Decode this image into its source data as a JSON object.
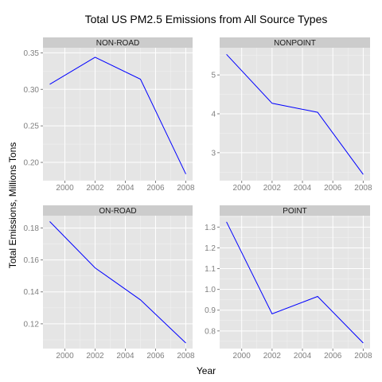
{
  "chart_data": {
    "type": "line",
    "title": "Total US PM2.5 Emissions from All Source Types",
    "xlabel": "Year",
    "ylabel": "Total Emissions, Millions Tons",
    "x_ticks": [
      2000,
      2002,
      2004,
      2006,
      2008
    ],
    "grid": true,
    "line_color": "#0000ff",
    "panel_background": "#e5e5e5",
    "strip_background": "#cccccc",
    "panels": [
      {
        "name": "NON-ROAD",
        "x": [
          1999,
          2002,
          2005,
          2008
        ],
        "values": [
          0.307,
          0.344,
          0.314,
          0.184
        ],
        "ylim": [
          0.175,
          0.357
        ],
        "y_ticks": [
          0.2,
          0.25,
          0.3,
          0.35
        ],
        "y_tick_labels": [
          "0.20",
          "0.25",
          "0.30",
          "0.35"
        ]
      },
      {
        "name": "NONPOINT",
        "x": [
          1999,
          2002,
          2005,
          2008
        ],
        "values": [
          5.53,
          4.27,
          4.04,
          2.44
        ],
        "ylim": [
          2.28,
          5.7
        ],
        "y_ticks": [
          3,
          4,
          5
        ],
        "y_tick_labels": [
          "3",
          "4",
          "5"
        ]
      },
      {
        "name": "ON-ROAD",
        "x": [
          1999,
          2002,
          2005,
          2008
        ],
        "values": [
          0.184,
          0.155,
          0.135,
          0.108
        ],
        "ylim": [
          0.1045,
          0.1877
        ],
        "y_ticks": [
          0.12,
          0.14,
          0.16,
          0.18
        ],
        "y_tick_labels": [
          "0.12",
          "0.14",
          "0.16",
          "0.18"
        ]
      },
      {
        "name": "POINT",
        "x": [
          1999,
          2002,
          2005,
          2008
        ],
        "values": [
          1.325,
          0.882,
          0.966,
          0.742
        ],
        "ylim": [
          0.715,
          1.355
        ],
        "y_ticks": [
          0.8,
          0.9,
          1.0,
          1.1,
          1.2,
          1.3
        ],
        "y_tick_labels": [
          "0.8",
          "0.9",
          "1.0",
          "1.1",
          "1.2",
          "1.3"
        ]
      }
    ]
  }
}
